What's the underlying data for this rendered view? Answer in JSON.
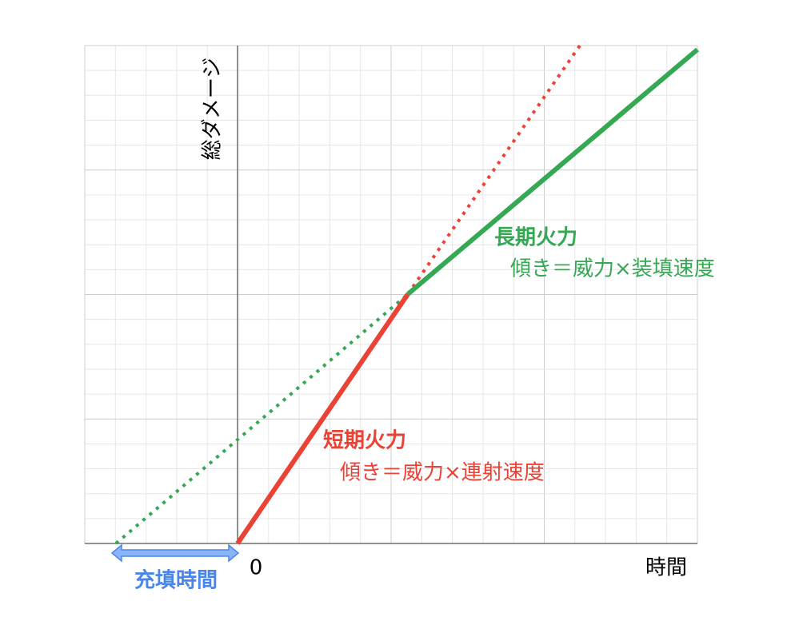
{
  "axes": {
    "y_label": "総ダメージ",
    "x_label": "時間",
    "origin": "0"
  },
  "long_term": {
    "title": "長期火力",
    "formula": "傾き＝威力×装填速度"
  },
  "short_term": {
    "title": "短期火力",
    "formula": "傾き＝威力×連射速度"
  },
  "reload": {
    "label": "充填時間"
  }
}
